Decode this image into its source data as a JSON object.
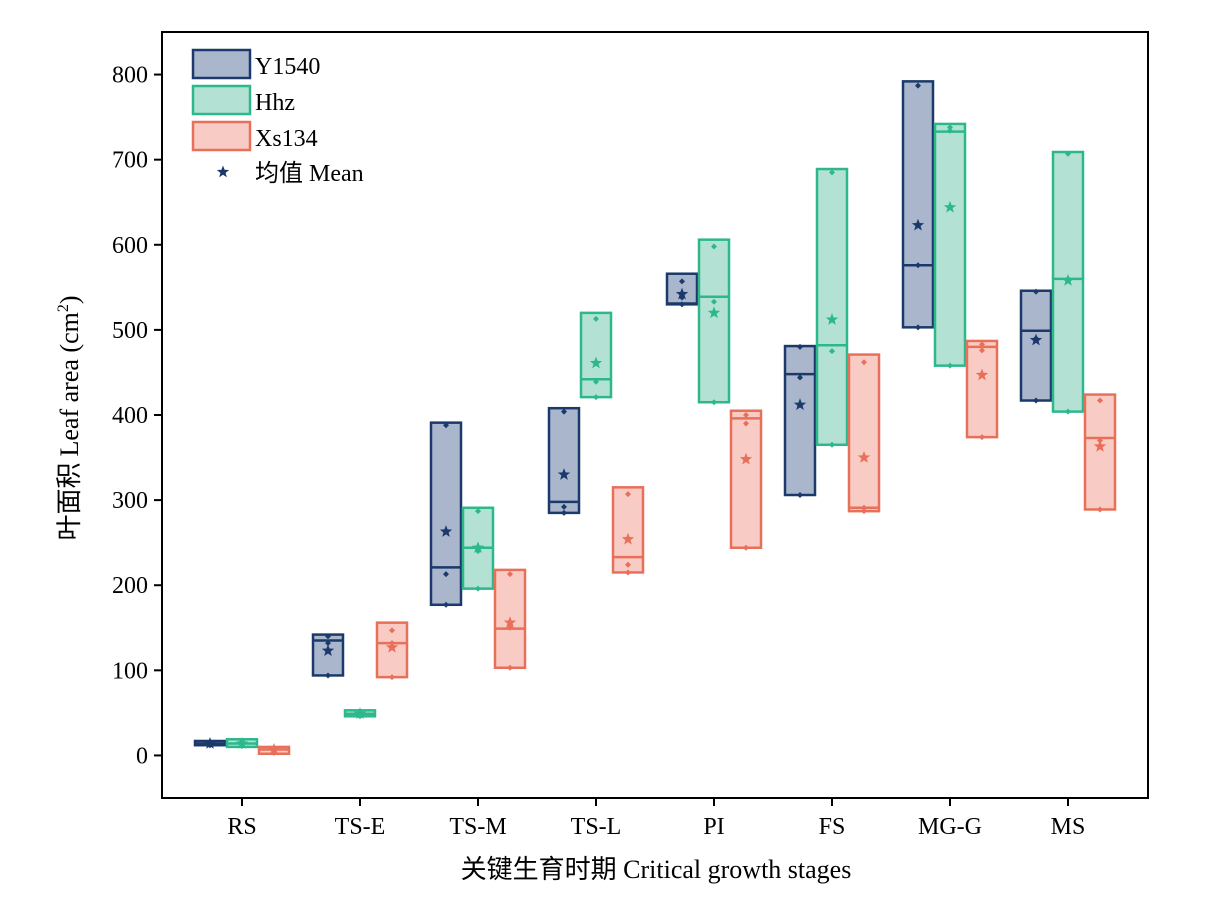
{
  "chart_data": {
    "type": "box",
    "ylabel_cn": "叶面积",
    "ylabel_en": "Leaf area (cm",
    "ylabel_sup": "2",
    "ylabel_close": ")",
    "xlabel": "关键生育时期 Critical growth stages",
    "ylim": [
      -50,
      850
    ],
    "yticks": [
      0,
      100,
      200,
      300,
      400,
      500,
      600,
      700,
      800
    ],
    "categories": [
      "RS",
      "TS-E",
      "TS-M",
      "TS-L",
      "PI",
      "FS",
      "MG-G",
      "MS"
    ],
    "legend": {
      "position": "top-left",
      "mean_label": "均值 Mean"
    },
    "series": [
      {
        "name": "Y1540",
        "color": "#1b3a6b",
        "fill": "#a9b6cc",
        "boxes": [
          {
            "min": 12,
            "max": 17,
            "median": 14,
            "mean": 14,
            "points": [
              12,
              14,
              16
            ]
          },
          {
            "min": 94,
            "max": 142,
            "median": 135,
            "mean": 123,
            "points": [
              94,
              132,
              140
            ]
          },
          {
            "min": 177,
            "max": 391,
            "median": 221,
            "mean": 263,
            "points": [
              177,
              213,
              388
            ]
          },
          {
            "min": 285,
            "max": 408,
            "median": 298,
            "mean": 330,
            "points": [
              285,
              292,
              404
            ]
          },
          {
            "min": 530,
            "max": 566,
            "median": 531,
            "mean": 542,
            "points": [
              530,
              538,
              557
            ]
          },
          {
            "min": 306,
            "max": 481,
            "median": 448,
            "mean": 412,
            "points": [
              306,
              444,
              480
            ]
          },
          {
            "min": 503,
            "max": 792,
            "median": 576,
            "mean": 623,
            "points": [
              503,
              576,
              787
            ]
          },
          {
            "min": 417,
            "max": 546,
            "median": 499,
            "mean": 488,
            "points": [
              417,
              490,
              545
            ]
          }
        ]
      },
      {
        "name": "Hhz",
        "color": "#2db88c",
        "fill": "#b3e2d4",
        "boxes": [
          {
            "min": 10,
            "max": 19,
            "median": 14,
            "mean": 14,
            "points": [
              11,
              14,
              17
            ]
          },
          {
            "min": 46,
            "max": 53,
            "median": 49,
            "mean": 49,
            "points": [
              46,
              49,
              52
            ]
          },
          {
            "min": 196,
            "max": 291,
            "median": 244,
            "mean": 244,
            "points": [
              196,
              240,
              287
            ]
          },
          {
            "min": 421,
            "max": 520,
            "median": 442,
            "mean": 461,
            "points": [
              421,
              439,
              513
            ]
          },
          {
            "min": 415,
            "max": 606,
            "median": 539,
            "mean": 520,
            "points": [
              415,
              533,
              598
            ]
          },
          {
            "min": 365,
            "max": 689,
            "median": 482,
            "mean": 512,
            "points": [
              365,
              475,
              685
            ]
          },
          {
            "min": 458,
            "max": 742,
            "median": 733,
            "mean": 644,
            "points": [
              458,
              734,
              738
            ]
          },
          {
            "min": 404,
            "max": 709,
            "median": 560,
            "mean": 558,
            "points": [
              404,
              560,
              707
            ]
          }
        ]
      },
      {
        "name": "Xs134",
        "color": "#e8705a",
        "fill": "#f8ccc4",
        "boxes": [
          {
            "min": 2,
            "max": 10,
            "median": 7,
            "mean": 7,
            "points": [
              3,
              7,
              9
            ]
          },
          {
            "min": 92,
            "max": 156,
            "median": 132,
            "mean": 127,
            "points": [
              92,
              132,
              147
            ]
          },
          {
            "min": 103,
            "max": 218,
            "median": 149,
            "mean": 156,
            "points": [
              103,
              150,
              213
            ]
          },
          {
            "min": 215,
            "max": 315,
            "median": 233,
            "mean": 254,
            "points": [
              215,
              224,
              307
            ]
          },
          {
            "min": 244,
            "max": 405,
            "median": 396,
            "mean": 348,
            "points": [
              244,
              390,
              400
            ]
          },
          {
            "min": 287,
            "max": 471,
            "median": 291,
            "mean": 350,
            "points": [
              287,
              291,
              462
            ]
          },
          {
            "min": 374,
            "max": 487,
            "median": 480,
            "mean": 447,
            "points": [
              374,
              476,
              483
            ]
          },
          {
            "min": 289,
            "max": 424,
            "median": 373,
            "mean": 363,
            "points": [
              289,
              370,
              417
            ]
          }
        ]
      }
    ]
  }
}
